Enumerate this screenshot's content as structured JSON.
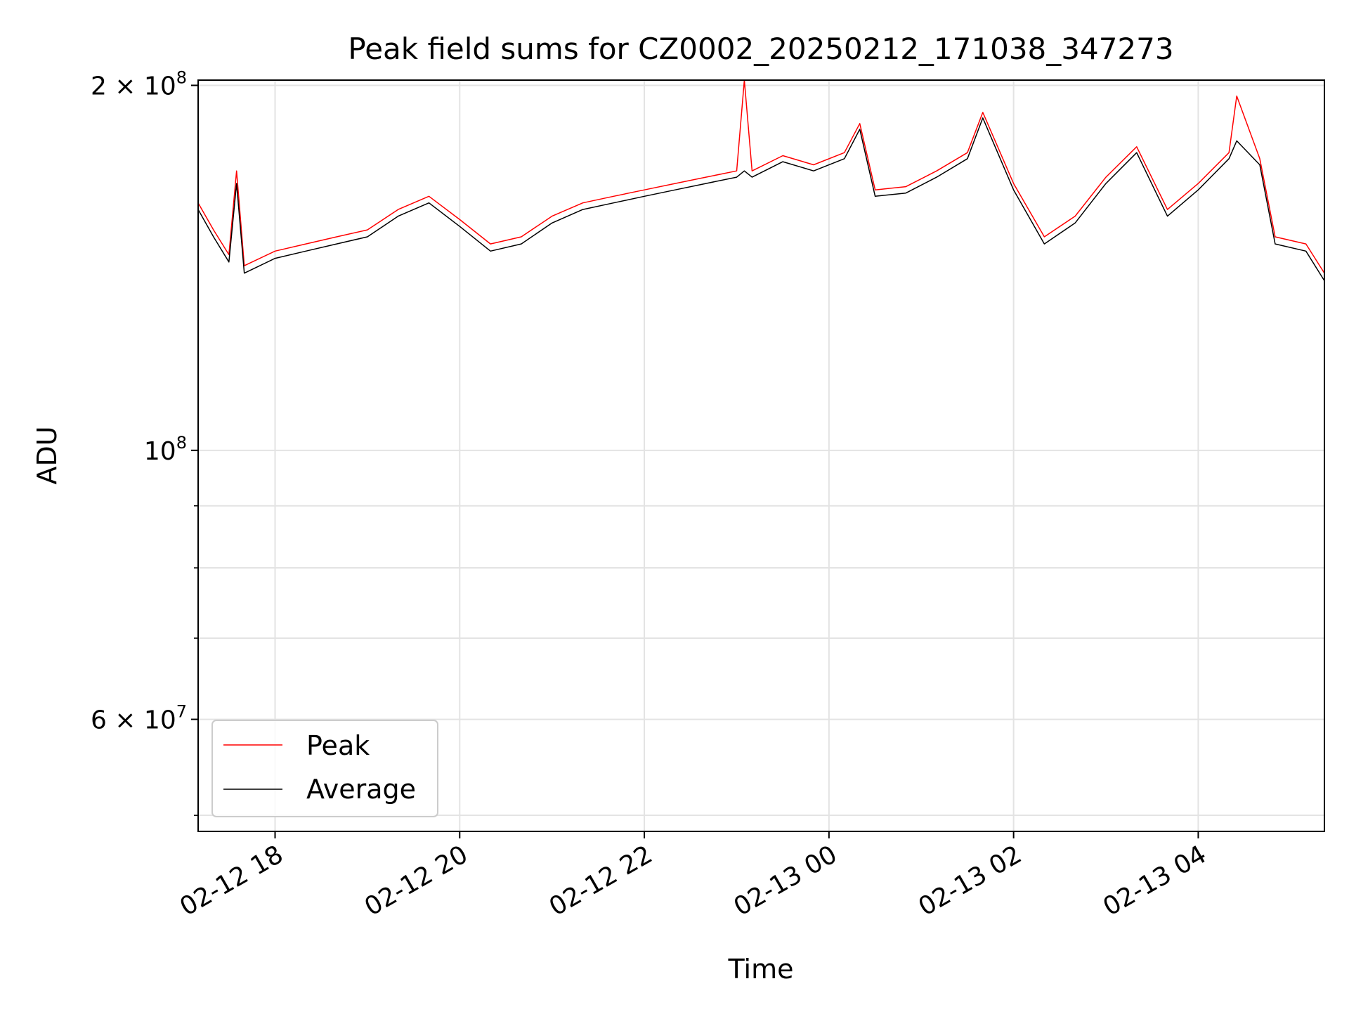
{
  "chart_data": {
    "type": "line",
    "title": "Peak field sums for CZ0002_20250212_171038_347273",
    "xlabel": "Time",
    "ylabel": "ADU",
    "x_range": [
      "2025-02-12 17:10",
      "2025-02-13 05:22"
    ],
    "x_ticks": [
      "02-12 18",
      "02-12 20",
      "02-12 22",
      "02-13 00",
      "02-13 02",
      "02-13 04"
    ],
    "y_scale": "log",
    "ylim": [
      48500000,
      202000000
    ],
    "y_tick_labels": [
      {
        "value": 200000000,
        "base": "2 × 10",
        "exp": "8"
      },
      {
        "value": 100000000,
        "base": "10",
        "exp": "8"
      },
      {
        "value": 60000000,
        "base": "6 × 10",
        "exp": "7"
      }
    ],
    "y_minor_ticks": [
      50000000,
      70000000,
      80000000,
      90000000
    ],
    "grid": true,
    "legend": {
      "position": "lower-left"
    },
    "series": [
      {
        "name": "Peak",
        "color": "#ff0000",
        "points": [
          [
            "2025-02-12 17:10",
            160000000
          ],
          [
            "2025-02-12 17:20",
            152000000
          ],
          [
            "2025-02-12 17:30",
            145000000
          ],
          [
            "2025-02-12 17:35",
            170000000
          ],
          [
            "2025-02-12 17:40",
            142000000
          ],
          [
            "2025-02-12 18:00",
            146000000
          ],
          [
            "2025-02-12 18:20",
            148000000
          ],
          [
            "2025-02-12 18:40",
            150000000
          ],
          [
            "2025-02-12 19:00",
            152000000
          ],
          [
            "2025-02-12 19:20",
            158000000
          ],
          [
            "2025-02-12 19:40",
            162000000
          ],
          [
            "2025-02-12 20:00",
            155000000
          ],
          [
            "2025-02-12 20:20",
            148000000
          ],
          [
            "2025-02-12 20:40",
            150000000
          ],
          [
            "2025-02-12 21:00",
            156000000
          ],
          [
            "2025-02-12 21:20",
            160000000
          ],
          [
            "2025-02-12 21:40",
            162000000
          ],
          [
            "2025-02-12 22:00",
            164000000
          ],
          [
            "2025-02-12 22:20",
            166000000
          ],
          [
            "2025-02-12 22:40",
            168000000
          ],
          [
            "2025-02-12 23:00",
            170000000
          ],
          [
            "2025-02-12 23:05",
            202000000
          ],
          [
            "2025-02-12 23:10",
            170000000
          ],
          [
            "2025-02-12 23:30",
            175000000
          ],
          [
            "2025-02-12 23:50",
            172000000
          ],
          [
            "2025-02-13 00:10",
            176000000
          ],
          [
            "2025-02-13 00:20",
            186000000
          ],
          [
            "2025-02-13 00:30",
            164000000
          ],
          [
            "2025-02-13 00:50",
            165000000
          ],
          [
            "2025-02-13 01:10",
            170000000
          ],
          [
            "2025-02-13 01:30",
            176000000
          ],
          [
            "2025-02-13 01:40",
            190000000
          ],
          [
            "2025-02-13 02:00",
            166000000
          ],
          [
            "2025-02-13 02:20",
            150000000
          ],
          [
            "2025-02-13 02:40",
            156000000
          ],
          [
            "2025-02-13 03:00",
            168000000
          ],
          [
            "2025-02-13 03:20",
            178000000
          ],
          [
            "2025-02-13 03:40",
            158000000
          ],
          [
            "2025-02-13 04:00",
            166000000
          ],
          [
            "2025-02-13 04:20",
            176000000
          ],
          [
            "2025-02-13 04:25",
            196000000
          ],
          [
            "2025-02-13 04:40",
            174000000
          ],
          [
            "2025-02-13 04:50",
            150000000
          ],
          [
            "2025-02-13 05:10",
            148000000
          ],
          [
            "2025-02-13 05:22",
            140000000
          ]
        ]
      },
      {
        "name": "Average",
        "color": "#000000",
        "points": [
          [
            "2025-02-12 17:10",
            158000000
          ],
          [
            "2025-02-12 17:20",
            150000000
          ],
          [
            "2025-02-12 17:30",
            143000000
          ],
          [
            "2025-02-12 17:35",
            166000000
          ],
          [
            "2025-02-12 17:40",
            140000000
          ],
          [
            "2025-02-12 18:00",
            144000000
          ],
          [
            "2025-02-12 18:20",
            146000000
          ],
          [
            "2025-02-12 18:40",
            148000000
          ],
          [
            "2025-02-12 19:00",
            150000000
          ],
          [
            "2025-02-12 19:20",
            156000000
          ],
          [
            "2025-02-12 19:40",
            160000000
          ],
          [
            "2025-02-12 20:00",
            153000000
          ],
          [
            "2025-02-12 20:20",
            146000000
          ],
          [
            "2025-02-12 20:40",
            148000000
          ],
          [
            "2025-02-12 21:00",
            154000000
          ],
          [
            "2025-02-12 21:20",
            158000000
          ],
          [
            "2025-02-12 21:40",
            160000000
          ],
          [
            "2025-02-12 22:00",
            162000000
          ],
          [
            "2025-02-12 22:20",
            164000000
          ],
          [
            "2025-02-12 22:40",
            166000000
          ],
          [
            "2025-02-12 23:00",
            168000000
          ],
          [
            "2025-02-12 23:05",
            170000000
          ],
          [
            "2025-02-12 23:10",
            168000000
          ],
          [
            "2025-02-12 23:30",
            173000000
          ],
          [
            "2025-02-12 23:50",
            170000000
          ],
          [
            "2025-02-13 00:10",
            174000000
          ],
          [
            "2025-02-13 00:20",
            184000000
          ],
          [
            "2025-02-13 00:30",
            162000000
          ],
          [
            "2025-02-13 00:50",
            163000000
          ],
          [
            "2025-02-13 01:10",
            168000000
          ],
          [
            "2025-02-13 01:30",
            174000000
          ],
          [
            "2025-02-13 01:40",
            188000000
          ],
          [
            "2025-02-13 02:00",
            164000000
          ],
          [
            "2025-02-13 02:20",
            148000000
          ],
          [
            "2025-02-13 02:40",
            154000000
          ],
          [
            "2025-02-13 03:00",
            166000000
          ],
          [
            "2025-02-13 03:20",
            176000000
          ],
          [
            "2025-02-13 03:40",
            156000000
          ],
          [
            "2025-02-13 04:00",
            164000000
          ],
          [
            "2025-02-13 04:20",
            174000000
          ],
          [
            "2025-02-13 04:25",
            180000000
          ],
          [
            "2025-02-13 04:40",
            172000000
          ],
          [
            "2025-02-13 04:50",
            148000000
          ],
          [
            "2025-02-13 05:10",
            146000000
          ],
          [
            "2025-02-13 05:22",
            138000000
          ]
        ]
      }
    ]
  }
}
